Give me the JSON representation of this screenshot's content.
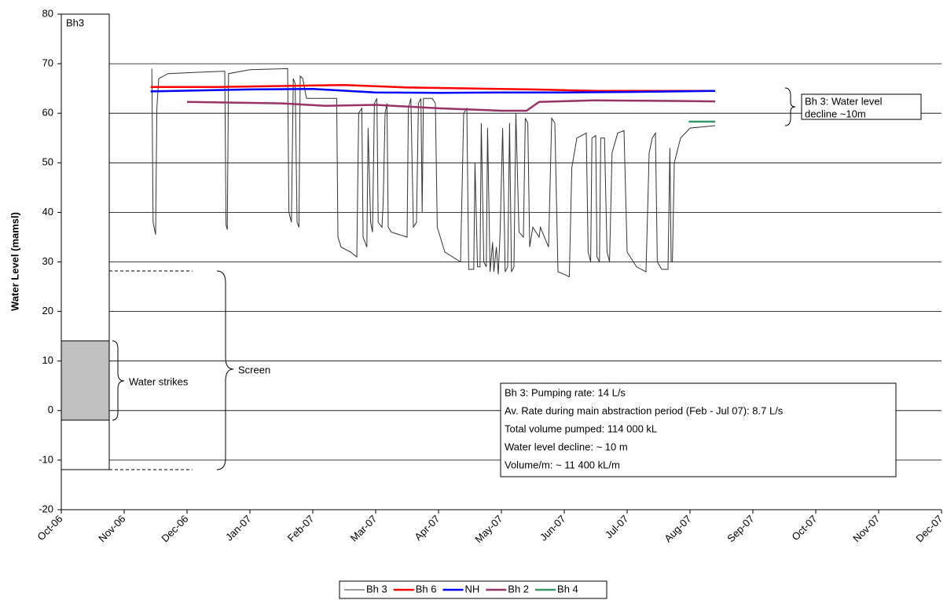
{
  "chart_data": {
    "type": "line",
    "y_label": "Water Level (mamsl)",
    "xlim": [
      0,
      14
    ],
    "xticks": [
      {
        "value": 0,
        "label": "Oct-06"
      },
      {
        "value": 1,
        "label": "Nov-06"
      },
      {
        "value": 2,
        "label": "Dec-06"
      },
      {
        "value": 3,
        "label": "Jan-07"
      },
      {
        "value": 4,
        "label": "Feb-07"
      },
      {
        "value": 5,
        "label": "Mar-07"
      },
      {
        "value": 6,
        "label": "Apr-07"
      },
      {
        "value": 7,
        "label": "May-07"
      },
      {
        "value": 8,
        "label": "Jun-07"
      },
      {
        "value": 9,
        "label": "Jul-07"
      },
      {
        "value": 10,
        "label": "Aug-07"
      },
      {
        "value": 11,
        "label": "Sep-07"
      },
      {
        "value": 12,
        "label": "Oct-07"
      },
      {
        "value": 13,
        "label": "Nov-07"
      },
      {
        "value": 14,
        "label": "Dec-07"
      }
    ],
    "ylim": [
      -20,
      80
    ],
    "yticks": [
      -20,
      -10,
      0,
      10,
      20,
      30,
      40,
      50,
      60,
      70,
      80
    ],
    "grid": true,
    "legend": "bottom",
    "series": [
      {
        "name": "Bh 3",
        "color": "#333333",
        "x": [
          1.44,
          1.46,
          1.5,
          1.52,
          1.55,
          1.7,
          2.6,
          2.62,
          2.64,
          2.66,
          3.0,
          3.6,
          3.62,
          3.66,
          3.69,
          3.72,
          3.75,
          3.78,
          3.8,
          3.84,
          3.9,
          4.38,
          4.4,
          4.45,
          4.6,
          4.7,
          4.73,
          4.78,
          4.8,
          4.86,
          4.88,
          4.92,
          4.95,
          4.98,
          5.02,
          5.04,
          5.1,
          5.12,
          5.15,
          5.18,
          5.2,
          5.25,
          5.5,
          5.52,
          5.56,
          5.6,
          5.65,
          5.68,
          5.72,
          5.74,
          5.76,
          5.9,
          5.95,
          5.98,
          6.1,
          6.35,
          6.4,
          6.45,
          6.48,
          6.56,
          6.58,
          6.62,
          6.66,
          6.68,
          6.72,
          6.76,
          6.78,
          6.82,
          6.86,
          6.88,
          6.92,
          6.95,
          6.98,
          7.02,
          7.06,
          7.1,
          7.13,
          7.16,
          7.2,
          7.23,
          7.28,
          7.35,
          7.38,
          7.42,
          7.45,
          7.5,
          7.55,
          7.6,
          7.62,
          7.75,
          7.8,
          7.85,
          7.9,
          8.0,
          8.08,
          8.12,
          8.2,
          8.35,
          8.38,
          8.42,
          8.44,
          8.5,
          8.52,
          8.56,
          8.58,
          8.64,
          8.68,
          8.72,
          8.76,
          8.85,
          8.95,
          9.0,
          9.15,
          9.3,
          9.35,
          9.4,
          9.45,
          9.48,
          9.55,
          9.65,
          9.68,
          9.7,
          9.72,
          9.75,
          9.85,
          10.0,
          10.4
        ],
        "values": [
          69,
          38,
          35.5,
          61,
          67,
          68,
          68.5,
          37.5,
          36.5,
          68,
          68.8,
          69,
          40,
          38,
          67,
          66,
          38,
          37,
          67.5,
          67,
          63,
          63,
          35,
          33,
          32,
          31,
          60,
          61,
          35,
          33,
          57,
          38,
          36,
          62,
          63,
          38,
          37,
          42,
          60,
          62,
          37,
          36,
          35,
          61,
          63,
          37,
          38,
          62,
          63,
          40,
          63,
          63,
          62,
          37,
          32,
          30,
          60,
          61,
          28.5,
          28.5,
          50,
          29,
          29,
          58,
          30,
          29,
          57,
          28,
          34,
          28,
          33,
          27.5,
          36,
          57,
          28,
          29,
          58,
          28,
          29,
          60,
          36,
          35,
          59,
          58,
          33,
          37,
          36,
          35,
          37,
          33,
          59,
          58,
          28,
          27.5,
          27,
          49,
          55,
          56,
          32,
          30,
          55,
          55.5,
          31,
          30,
          55,
          55,
          32,
          30,
          52,
          56,
          56.5,
          32,
          29,
          28,
          52,
          55,
          56,
          30,
          28.5,
          28.5,
          53,
          30,
          30,
          50,
          55,
          57,
          57.5
        ]
      },
      {
        "name": "Bh 6",
        "color": "#ff0000",
        "x": [
          1.42,
          2.5,
          3.5,
          4.5,
          5.5,
          6.5,
          7.5,
          8.5,
          9.5,
          10.4
        ],
        "values": [
          65.3,
          65.3,
          65.5,
          65.7,
          65.2,
          65,
          64.8,
          64.5,
          64.5,
          64.5
        ]
      },
      {
        "name": "NH",
        "color": "#0000ff",
        "x": [
          1.42,
          3,
          4,
          5,
          6,
          7,
          8,
          9,
          10.4
        ],
        "values": [
          64.4,
          64.8,
          64.9,
          64.2,
          64.1,
          64.2,
          64.2,
          64.3,
          64.5
        ]
      },
      {
        "name": "Bh 2",
        "color": "#993366",
        "x": [
          2.0,
          3.5,
          4.2,
          5,
          6,
          7,
          7.4,
          7.6,
          8.5,
          9.5,
          10.4
        ],
        "values": [
          62.3,
          62,
          61.5,
          61.7,
          61,
          60.5,
          60.5,
          62.3,
          62.6,
          62.5,
          62.4
        ]
      },
      {
        "name": "Bh 4",
        "color": "#339966",
        "x": [
          9.98,
          10.4
        ],
        "values": [
          58.3,
          58.3
        ]
      }
    ]
  },
  "annotations": {
    "column_label": "Bh3",
    "water_strikes": "Water strikes",
    "screen": "Screen",
    "decline_note": [
      "Bh 3: Water level",
      "decline ~10m"
    ],
    "info_box": [
      "Bh 3: Pumping rate: 14 L/s",
      "Av. Rate during main abstraction period (Feb - Jul 07): 8.7 L/s",
      "Total volume pumped: 114 000 kL",
      "Water level decline: ~ 10 m",
      "Volume/m: ~ 11 400 kL/m"
    ]
  }
}
